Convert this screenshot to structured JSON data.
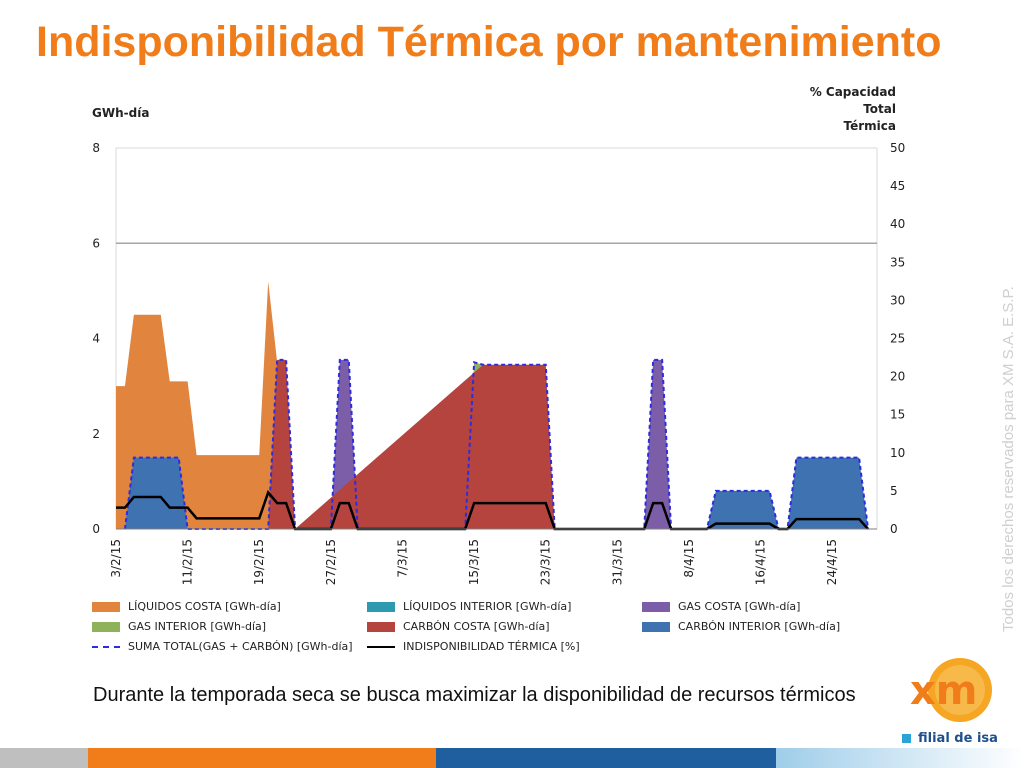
{
  "header": {
    "title": "Indisponibilidad Térmica por mantenimiento"
  },
  "axes": {
    "left_label": "GWh-día",
    "right_label": [
      "% Capacidad",
      "Total",
      "Térmica"
    ]
  },
  "caption": "Durante la temporada seca se busca maximizar la disponibilidad de recursos térmicos",
  "watermark": "Todos los derechos reservados para XM S.A. E.S.P.",
  "logo": {
    "brand": "xm",
    "subtitle": "filial de isa"
  },
  "colors": {
    "title": "#f07d1a",
    "liquidos_costa": "#e0843e",
    "liquidos_interior": "#2e9ab0",
    "gas_costa": "#7b5ea7",
    "gas_interior": "#8db25a",
    "carbon_costa": "#b5443f",
    "carbon_interior": "#3f72b0",
    "suma_total": "#2c2ce0",
    "indisponibilidad": "#000000",
    "footer": [
      "#bfbfbf",
      "#f07d1a",
      "#1f5fa0",
      "#d9ecf7"
    ]
  },
  "chart_data": {
    "type": "area",
    "title": "",
    "xlabel": "",
    "ylabel": "GWh-día",
    "ylabel_right": "% Capacidad Total Térmica",
    "ylim": [
      0,
      8
    ],
    "ylim_right": [
      0,
      50
    ],
    "yticks": [
      0,
      2,
      4,
      6,
      8
    ],
    "yticks_right": [
      0,
      5,
      10,
      15,
      20,
      25,
      30,
      35,
      40,
      45,
      50
    ],
    "gridlines": [
      6
    ],
    "x_range": [
      "2015-02-03",
      "2015-04-29"
    ],
    "xtick_labels": [
      "3/2/15",
      "11/2/15",
      "19/2/15",
      "27/2/15",
      "7/3/15",
      "15/3/15",
      "23/3/15",
      "31/3/15",
      "8/4/15",
      "16/4/15",
      "24/4/15"
    ],
    "xtick_dates": [
      "2015-02-03",
      "2015-02-11",
      "2015-02-19",
      "2015-02-27",
      "2015-03-07",
      "2015-03-15",
      "2015-03-23",
      "2015-03-31",
      "2015-04-08",
      "2015-04-16",
      "2015-04-24"
    ],
    "legend_position": "bottom",
    "series": [
      {
        "name": "LÍQUIDOS COSTA [GWh-día]",
        "axis": "left",
        "kind": "area",
        "color": "#e0843e",
        "points": [
          [
            "2015-02-03",
            3.0
          ],
          [
            "2015-02-04",
            3.0
          ],
          [
            "2015-02-05",
            4.5
          ],
          [
            "2015-02-08",
            4.5
          ],
          [
            "2015-02-09",
            3.1
          ],
          [
            "2015-02-10",
            3.1
          ],
          [
            "2015-02-11",
            3.1
          ],
          [
            "2015-02-12",
            1.55
          ],
          [
            "2015-02-19",
            1.55
          ],
          [
            "2015-02-20",
            5.2
          ],
          [
            "2015-02-21",
            3.5
          ],
          [
            "2015-02-22",
            0
          ]
        ]
      },
      {
        "name": "LÍQUIDOS INTERIOR [GWh-día]",
        "axis": "left",
        "kind": "area",
        "color": "#2e9ab0",
        "points": []
      },
      {
        "name": "GAS COSTA [GWh-día]",
        "axis": "left",
        "kind": "area",
        "color": "#7b5ea7",
        "points": [
          [
            "2015-02-27",
            0
          ],
          [
            "2015-02-28",
            3.55
          ],
          [
            "2015-03-01",
            3.55
          ],
          [
            "2015-03-02",
            0
          ],
          [
            "2015-04-03",
            0
          ],
          [
            "2015-04-04",
            3.55
          ],
          [
            "2015-04-05",
            3.55
          ],
          [
            "2015-04-06",
            0
          ]
        ]
      },
      {
        "name": "GAS INTERIOR [GWh-día]",
        "axis": "left",
        "kind": "area",
        "color": "#8db25a",
        "points": [
          [
            "2015-03-14",
            0
          ],
          [
            "2015-03-15",
            3.5
          ],
          [
            "2015-03-16",
            3.45
          ],
          [
            "2015-03-16.5",
            0
          ]
        ]
      },
      {
        "name": "CARBÓN COSTA [GWh-día]",
        "axis": "left",
        "kind": "area",
        "color": "#b5443f",
        "points": [
          [
            "2015-02-20",
            0
          ],
          [
            "2015-02-21",
            3.55
          ],
          [
            "2015-02-22",
            3.55
          ],
          [
            "2015-02-23",
            0
          ],
          [
            "2015-03-16",
            3.45
          ],
          [
            "2015-03-23",
            3.45
          ],
          [
            "2015-03-24",
            0
          ]
        ]
      },
      {
        "name": "CARBÓN INTERIOR [GWh-día]",
        "axis": "left",
        "kind": "area",
        "color": "#3f72b0",
        "points": [
          [
            "2015-02-04",
            0
          ],
          [
            "2015-02-05",
            1.5
          ],
          [
            "2015-02-10",
            1.5
          ],
          [
            "2015-02-11",
            0
          ],
          [
            "2015-04-10",
            0
          ],
          [
            "2015-04-11",
            0.8
          ],
          [
            "2015-04-17",
            0.8
          ],
          [
            "2015-04-18",
            0
          ],
          [
            "2015-04-19",
            0
          ],
          [
            "2015-04-20",
            1.5
          ],
          [
            "2015-04-27",
            1.5
          ],
          [
            "2015-04-28",
            0
          ]
        ]
      },
      {
        "name": "SUMA TOTAL(GAS + CARBÓN) [GWh-día]",
        "axis": "left",
        "kind": "dashed-line",
        "color": "#2c2ce0",
        "points": [
          [
            "2015-02-04",
            0
          ],
          [
            "2015-02-05",
            1.5
          ],
          [
            "2015-02-10",
            1.5
          ],
          [
            "2015-02-11",
            0
          ],
          [
            "2015-02-19",
            0
          ],
          [
            "2015-02-20",
            0
          ],
          [
            "2015-02-21",
            3.55
          ],
          [
            "2015-02-22",
            3.55
          ],
          [
            "2015-02-23",
            0
          ],
          [
            "2015-02-27",
            0
          ],
          [
            "2015-02-28",
            3.55
          ],
          [
            "2015-03-01",
            3.55
          ],
          [
            "2015-03-02",
            0
          ],
          [
            "2015-03-14",
            0
          ],
          [
            "2015-03-15",
            3.5
          ],
          [
            "2015-03-16",
            3.45
          ],
          [
            "2015-03-23",
            3.45
          ],
          [
            "2015-03-24",
            0
          ],
          [
            "2015-04-03",
            0
          ],
          [
            "2015-04-04",
            3.55
          ],
          [
            "2015-04-05",
            3.55
          ],
          [
            "2015-04-06",
            0
          ],
          [
            "2015-04-10",
            0
          ],
          [
            "2015-04-11",
            0.8
          ],
          [
            "2015-04-17",
            0.8
          ],
          [
            "2015-04-18",
            0
          ],
          [
            "2015-04-19",
            0
          ],
          [
            "2015-04-20",
            1.5
          ],
          [
            "2015-04-27",
            1.5
          ],
          [
            "2015-04-28",
            0
          ]
        ]
      },
      {
        "name": "INDISPONIBILIDAD TÉRMICA [%]",
        "axis": "right",
        "kind": "line",
        "color": "#000000",
        "points": [
          [
            "2015-02-03",
            2.8
          ],
          [
            "2015-02-04",
            2.8
          ],
          [
            "2015-02-05",
            4.2
          ],
          [
            "2015-02-08",
            4.2
          ],
          [
            "2015-02-09",
            2.8
          ],
          [
            "2015-02-11",
            2.8
          ],
          [
            "2015-02-12",
            1.4
          ],
          [
            "2015-02-19",
            1.4
          ],
          [
            "2015-02-20",
            4.8
          ],
          [
            "2015-02-21",
            3.4
          ],
          [
            "2015-02-22",
            3.4
          ],
          [
            "2015-02-23",
            0
          ],
          [
            "2015-02-27",
            0
          ],
          [
            "2015-02-28",
            3.4
          ],
          [
            "2015-03-01",
            3.4
          ],
          [
            "2015-03-02",
            0
          ],
          [
            "2015-03-14",
            0
          ],
          [
            "2015-03-15",
            3.4
          ],
          [
            "2015-03-23",
            3.4
          ],
          [
            "2015-03-24",
            0
          ],
          [
            "2015-04-03",
            0
          ],
          [
            "2015-04-04",
            3.4
          ],
          [
            "2015-04-05",
            3.4
          ],
          [
            "2015-04-06",
            0
          ],
          [
            "2015-04-10",
            0
          ],
          [
            "2015-04-11",
            0.7
          ],
          [
            "2015-04-17",
            0.7
          ],
          [
            "2015-04-18",
            0
          ],
          [
            "2015-04-19",
            0
          ],
          [
            "2015-04-20",
            1.3
          ],
          [
            "2015-04-27",
            1.3
          ],
          [
            "2015-04-28",
            0
          ]
        ]
      }
    ]
  }
}
